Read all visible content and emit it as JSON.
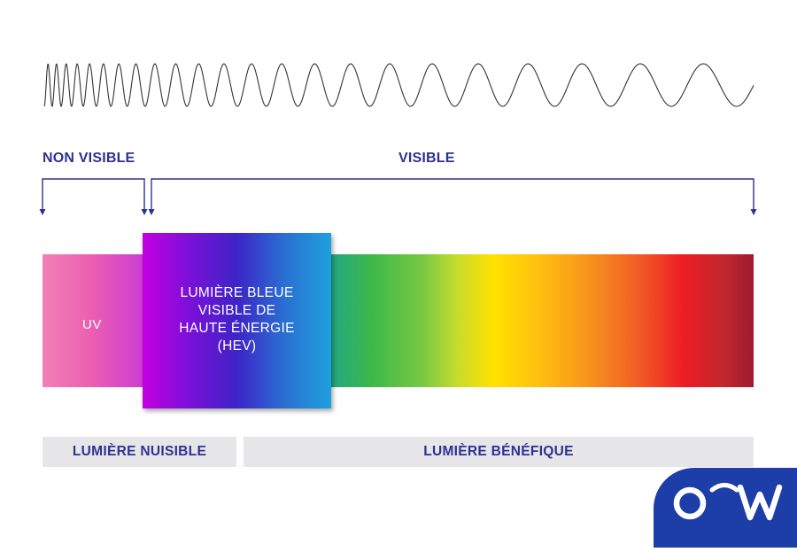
{
  "headings": {
    "non_visible": "NON VISIBLE",
    "visible": "VISIBLE"
  },
  "spectrum": {
    "uv_label": "UV",
    "hev_label": "LUMIÈRE BLEUE\nVISIBLE DE\nHAUTE ÉNERGIE\n(HEV)"
  },
  "categories": {
    "harmful": "LUMIÈRE NUISIBLE",
    "beneficial": "LUMIÈRE BÉNÉFIQUE"
  },
  "colors": {
    "heading": "#2e3192",
    "logo_bg": "#1d3da8",
    "wave_stroke": "#333333"
  },
  "logo": {
    "icon": "ocw-logo-icon"
  }
}
